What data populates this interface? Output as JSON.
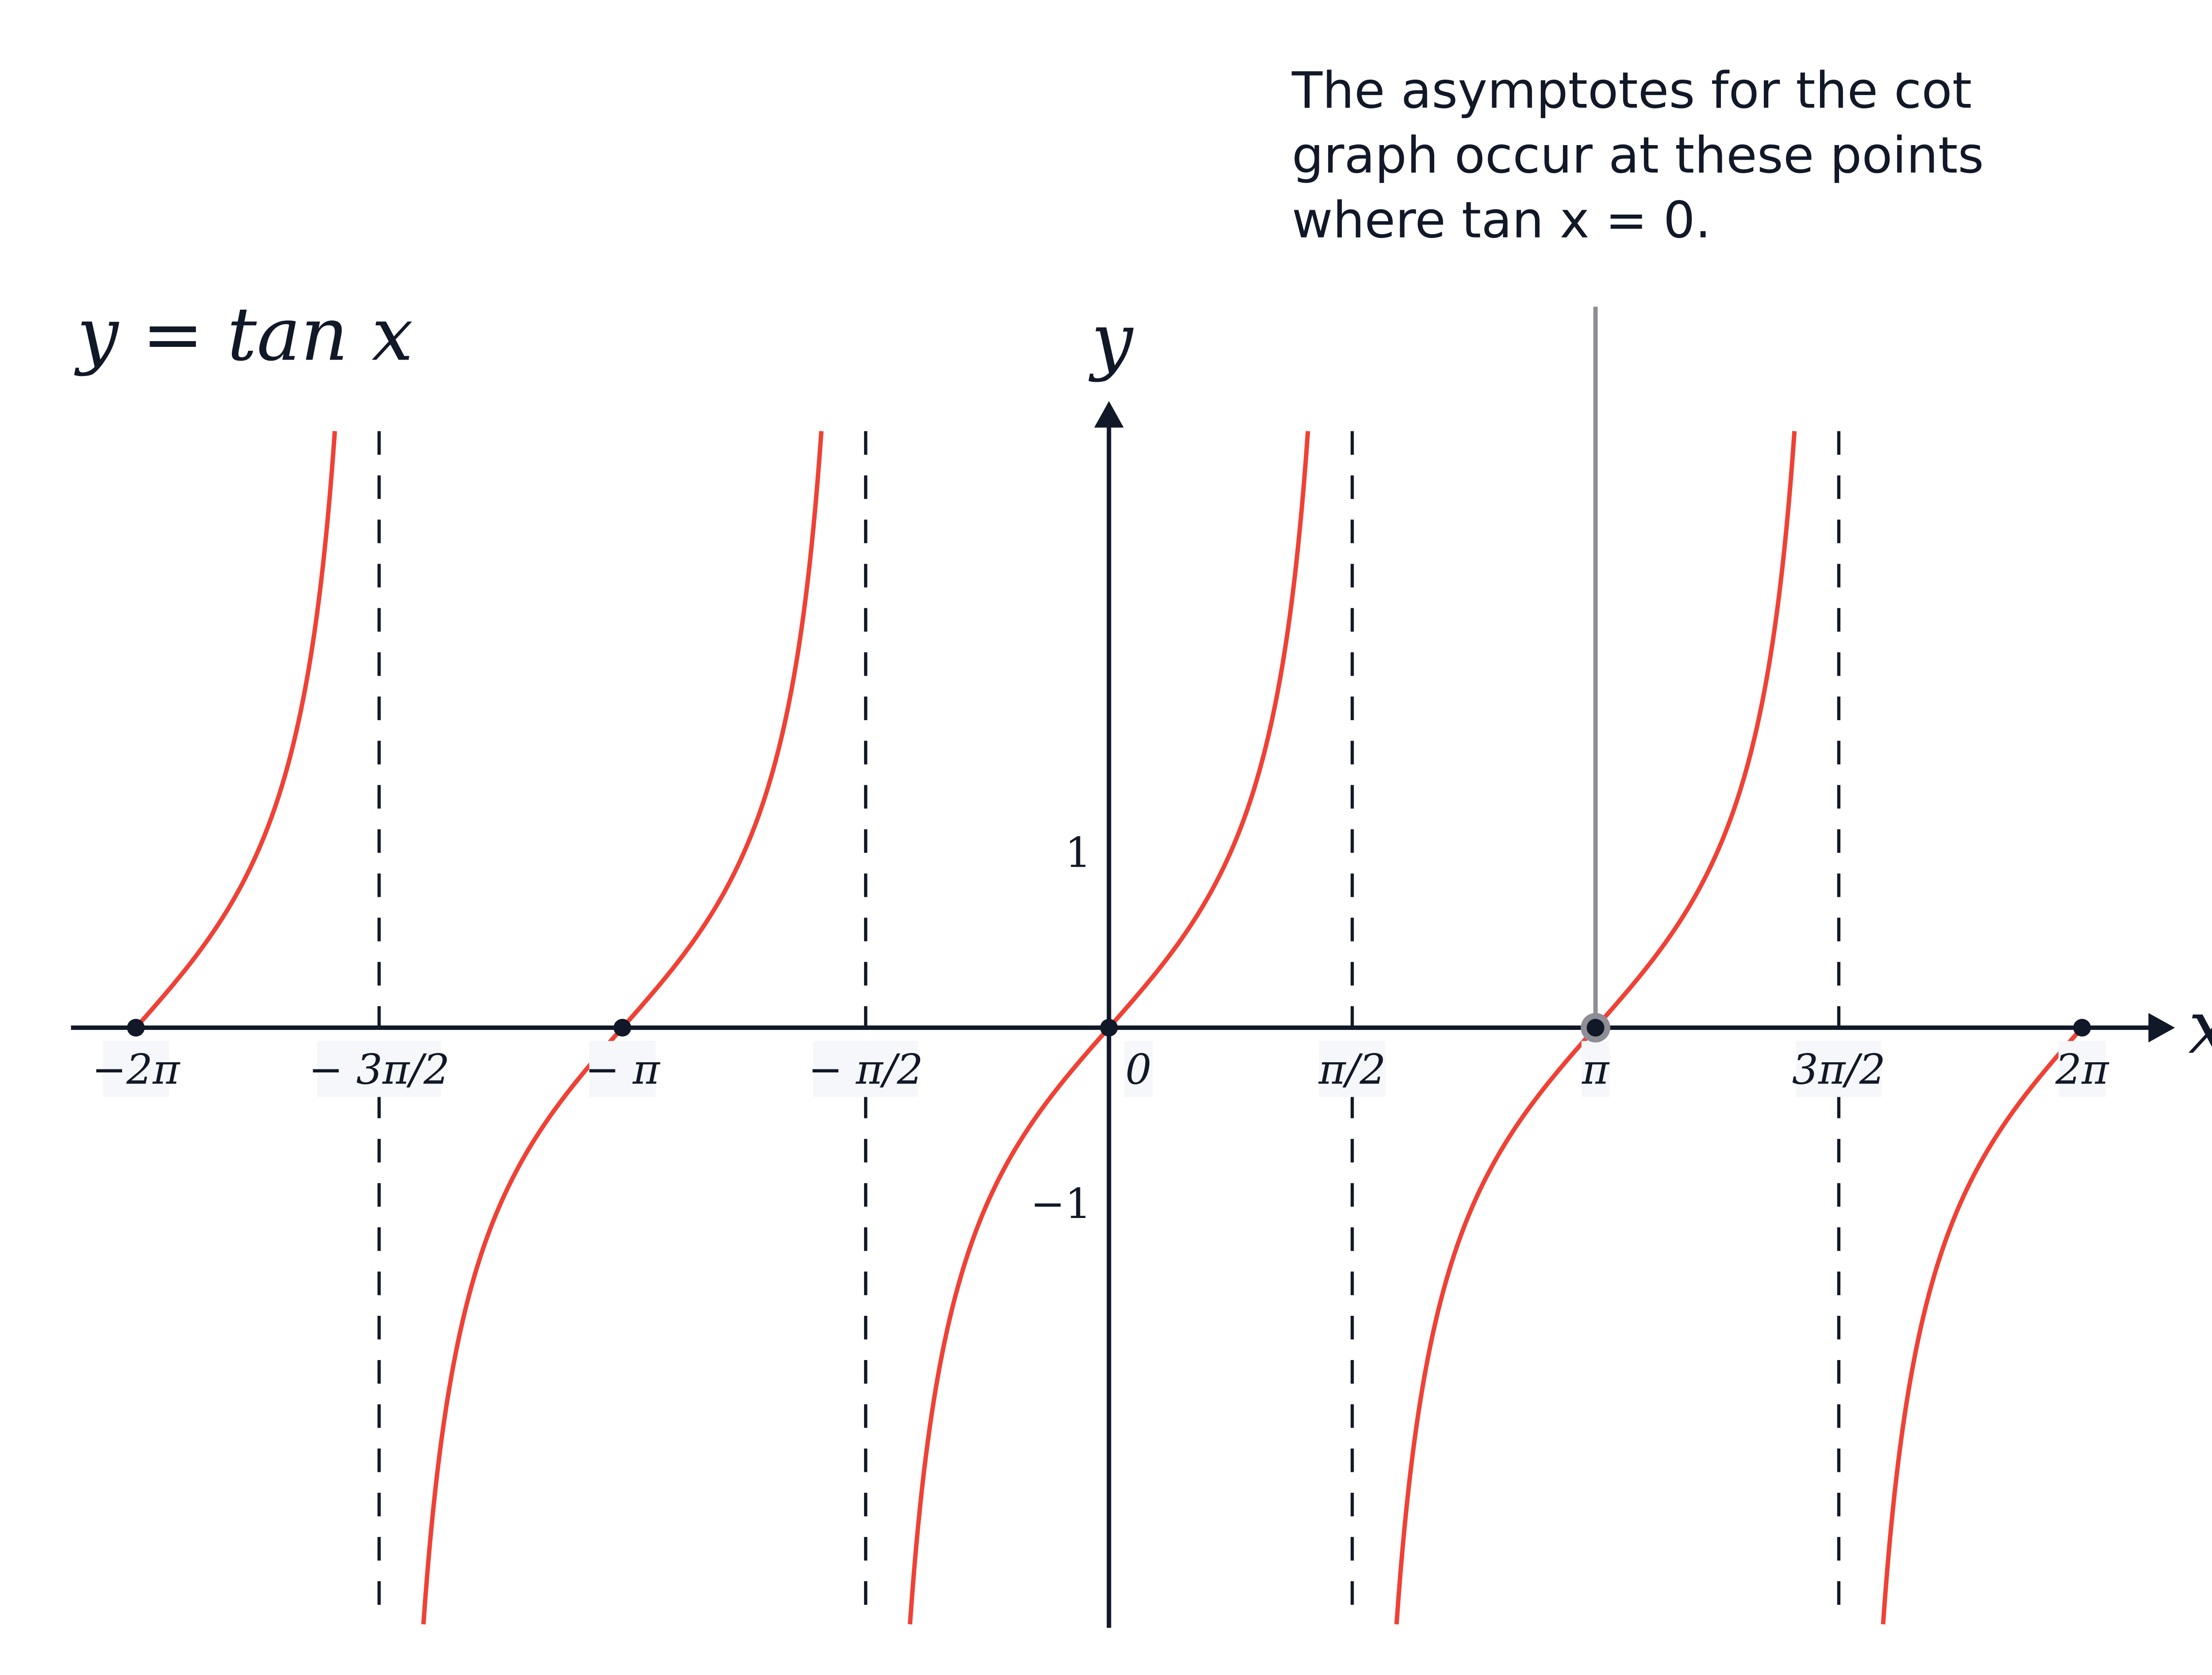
{
  "chart_data": {
    "type": "line",
    "title": "y = tan x",
    "function": "tan",
    "xlabel": "x",
    "ylabel": "y",
    "xlim_pi_units": [
      -2,
      2
    ],
    "ylim": [
      -3.4,
      3.4
    ],
    "grid": false,
    "x_ticks": [
      {
        "value_pi": -2,
        "label": "−2π"
      },
      {
        "value_pi": -1.5,
        "label": "− 3π/2"
      },
      {
        "value_pi": -1,
        "label": "− π"
      },
      {
        "value_pi": -0.5,
        "label": "− π/2"
      },
      {
        "value_pi": 0,
        "label": "0"
      },
      {
        "value_pi": 0.5,
        "label": "π/2"
      },
      {
        "value_pi": 1,
        "label": "π"
      },
      {
        "value_pi": 1.5,
        "label": "3π/2"
      },
      {
        "value_pi": 2,
        "label": "2π"
      }
    ],
    "y_ticks": [
      {
        "value": 1,
        "label": "1"
      },
      {
        "value": -1,
        "label": "−1"
      }
    ],
    "asymptotes_pi": [
      -1.5,
      -0.5,
      0.5,
      1.5
    ],
    "zeros_pi": [
      -2,
      -1,
      0,
      1,
      2
    ],
    "highlighted_zero_pi": 1,
    "annotation": {
      "lines": [
        "The asymptotes for the cot",
        "graph occur at these points",
        "where tan x = 0."
      ],
      "points_to_pi": 1
    },
    "colors": {
      "curve": "#ef4135",
      "axis": "#111827",
      "highlight": "#8e8e96",
      "label_bg": "#f5f7fa"
    }
  }
}
